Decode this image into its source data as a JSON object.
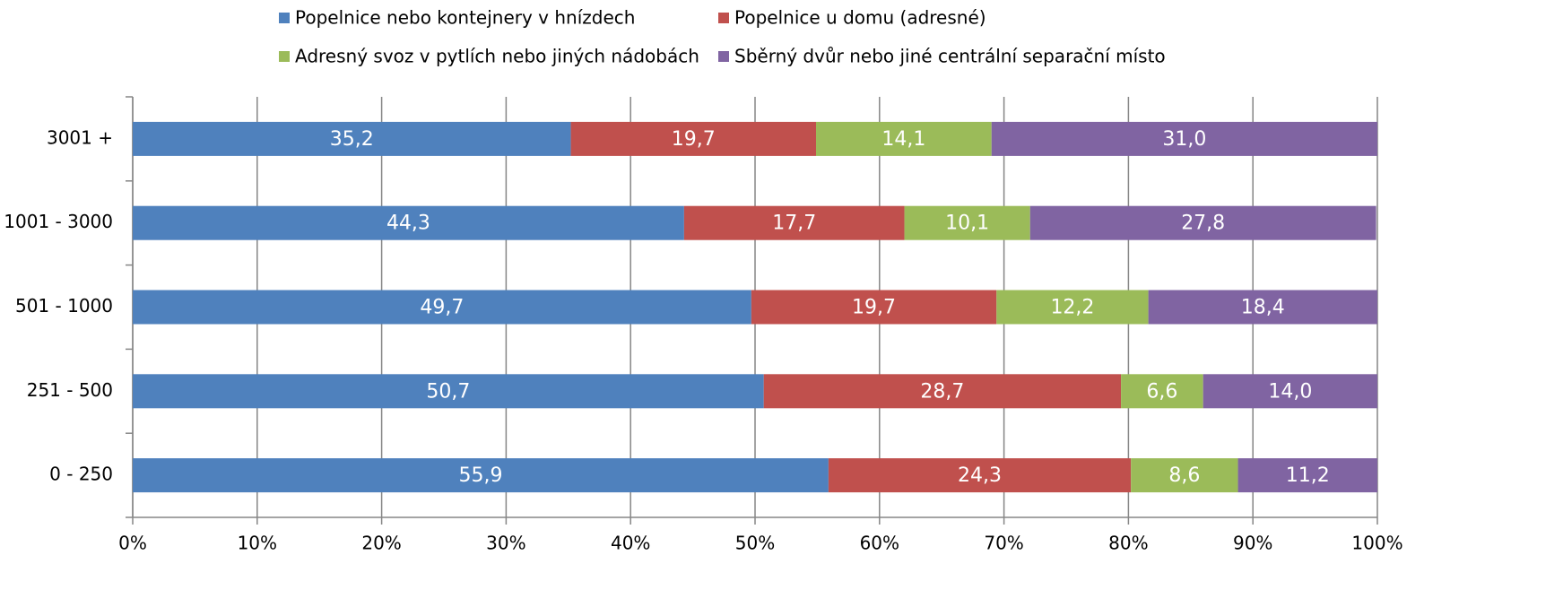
{
  "chart_data": {
    "type": "stacked-bar-horizontal",
    "categories": [
      "3001 +",
      "1001 - 3000",
      "501 - 1000",
      "251 - 500",
      "0 - 250"
    ],
    "series": [
      {
        "name": "Popelnice nebo kontejnery v hnízdech",
        "color": "#4f81bd",
        "values": [
          35.2,
          44.3,
          49.7,
          50.7,
          55.9
        ],
        "value_labels": [
          "35,2",
          "44,3",
          "49,7",
          "50,7",
          "55,9"
        ]
      },
      {
        "name": "Popelnice u domu (adresné)",
        "color": "#c0504d",
        "values": [
          19.7,
          17.7,
          19.7,
          28.7,
          24.3
        ],
        "value_labels": [
          "19,7",
          "17,7",
          "19,7",
          "28,7",
          "24,3"
        ]
      },
      {
        "name": "Adresný svoz v pytlích nebo jiných nádobách",
        "color": "#9bbb59",
        "values": [
          14.1,
          10.1,
          12.2,
          6.6,
          8.6
        ],
        "value_labels": [
          "14,1",
          "10,1",
          "12,2",
          "6,6",
          "8,6"
        ]
      },
      {
        "name": "Sběrný dvůr nebo jiné centrální separační místo",
        "color": "#8064a2",
        "values": [
          31.0,
          27.8,
          18.4,
          14.0,
          11.2
        ],
        "value_labels": [
          "31,0",
          "27,8",
          "18,4",
          "14,0",
          "11,2"
        ]
      }
    ],
    "xlim": [
      0,
      100
    ],
    "xticks": [
      {
        "value": 0,
        "label": "0%"
      },
      {
        "value": 10,
        "label": "10%"
      },
      {
        "value": 20,
        "label": "20%"
      },
      {
        "value": 30,
        "label": "30%"
      },
      {
        "value": 40,
        "label": "40%"
      },
      {
        "value": 50,
        "label": "50%"
      },
      {
        "value": 60,
        "label": "60%"
      },
      {
        "value": 70,
        "label": "70%"
      },
      {
        "value": 80,
        "label": "80%"
      },
      {
        "value": 90,
        "label": "90%"
      },
      {
        "value": 100,
        "label": "100%"
      }
    ],
    "grid": true
  }
}
